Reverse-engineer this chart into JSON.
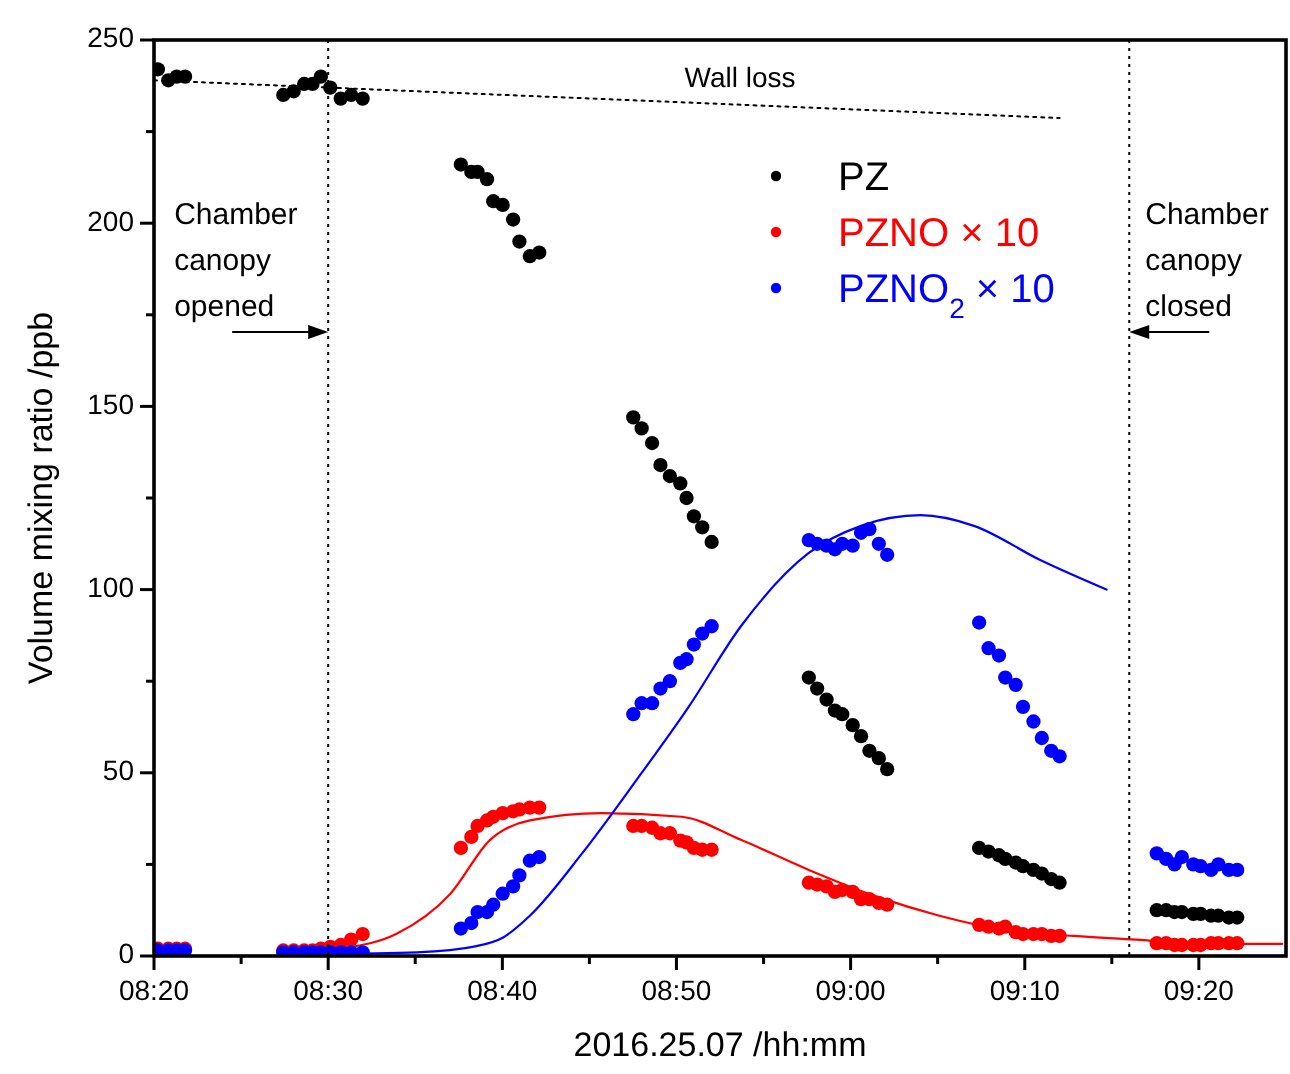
{
  "chart_data": {
    "type": "scatter",
    "xlabel": "2016.25.07 /hh:mm",
    "ylabel": "Volume mixing ratio /ppb",
    "xlim": [
      8.3333,
      9.4167
    ],
    "xticks": [
      {
        "value": 8.3333,
        "label": "08:20"
      },
      {
        "value": 8.4167,
        "label": null
      },
      {
        "value": 8.5,
        "label": "08:30"
      },
      {
        "value": 8.5833,
        "label": null
      },
      {
        "value": 8.6667,
        "label": "08:40"
      },
      {
        "value": 8.75,
        "label": null
      },
      {
        "value": 8.8333,
        "label": "08:50"
      },
      {
        "value": 8.9167,
        "label": null
      },
      {
        "value": 9.0,
        "label": "09:00"
      },
      {
        "value": 9.0833,
        "label": null
      },
      {
        "value": 9.1667,
        "label": "09:10"
      },
      {
        "value": 9.25,
        "label": null
      },
      {
        "value": 9.3333,
        "label": "09:20"
      }
    ],
    "ylim": [
      0,
      250
    ],
    "yticks": [
      0,
      {
        "value": 25,
        "label": null
      },
      50,
      {
        "value": 75,
        "label": null
      },
      100,
      {
        "value": 125,
        "label": null
      },
      150,
      {
        "value": 175,
        "label": null
      },
      200,
      {
        "value": 225,
        "label": null
      },
      250
    ],
    "x": [
      8.337,
      8.347,
      8.355,
      8.363,
      8.457,
      8.467,
      8.477,
      8.485,
      8.493,
      8.502,
      8.512,
      8.522,
      8.533,
      8.627,
      8.637,
      8.643,
      8.652,
      8.658,
      8.667,
      8.677,
      8.683,
      8.693,
      8.702,
      8.792,
      8.8,
      8.81,
      8.818,
      8.827,
      8.837,
      8.843,
      8.85,
      8.858,
      8.867,
      8.96,
      8.968,
      8.977,
      8.985,
      8.992,
      9.002,
      9.01,
      9.018,
      9.027,
      9.035,
      9.123,
      9.132,
      9.142,
      9.148,
      9.158,
      9.165,
      9.175,
      9.183,
      9.192,
      9.2,
      9.293,
      9.302,
      9.31,
      9.317,
      9.328,
      9.335,
      9.345,
      9.352,
      9.362,
      9.37
    ],
    "series": [
      {
        "name": "PZ",
        "color": "#000000",
        "values": [
          242,
          239,
          240,
          240,
          235,
          236,
          238,
          238,
          240,
          237,
          234,
          235,
          234,
          216,
          214,
          214,
          212,
          206,
          205,
          201,
          195,
          191,
          192,
          147,
          144,
          140,
          134,
          131,
          129,
          125,
          120,
          117,
          113,
          76,
          73,
          70,
          67,
          66,
          63,
          60,
          56,
          54,
          51,
          29.5,
          28.5,
          27.5,
          26.5,
          25.5,
          24.5,
          23.5,
          22.5,
          21,
          20,
          12.5,
          12.5,
          12,
          12,
          11.5,
          11.5,
          11,
          11,
          10.5,
          10.5
        ]
      },
      {
        "name": "PZNO × 10",
        "color": "#ff0000",
        "values": [
          2,
          2,
          2,
          2,
          1.5,
          1.5,
          1.5,
          1.5,
          2,
          2.5,
          3,
          4.5,
          6,
          29.5,
          32.5,
          35.5,
          37,
          38,
          39,
          39.5,
          40,
          40.5,
          40.5,
          35.5,
          35.5,
          35,
          33.5,
          33.5,
          31.5,
          31,
          29.5,
          29,
          29,
          20,
          19.5,
          19,
          17.5,
          18,
          17.5,
          15.5,
          15.5,
          14.5,
          14,
          8.5,
          8,
          7.5,
          8,
          6.5,
          6,
          6,
          6,
          5.5,
          5.5,
          3.5,
          3.5,
          3,
          3,
          3,
          3,
          3.5,
          3.5,
          3.5,
          3.5
        ]
      },
      {
        "name": "PZNO$_{2}$ × 10",
        "color": "#0000ff",
        "values": [
          1.5,
          1.5,
          1.5,
          1.5,
          1,
          1,
          1,
          1,
          1,
          1,
          1,
          1,
          1,
          7.5,
          9,
          12,
          12,
          14,
          17,
          19,
          22,
          26,
          27,
          66,
          69,
          69,
          73,
          75,
          80,
          81,
          85,
          88,
          90,
          113.5,
          112.5,
          112,
          111,
          112.5,
          112,
          115.5,
          116.5,
          112.5,
          109.5,
          91,
          84,
          82,
          76,
          74,
          68,
          64,
          59.5,
          56,
          54.5,
          28,
          26.5,
          25,
          27,
          25,
          24.5,
          23.5,
          25,
          23.5,
          23.5
        ]
      },
      {
        "type": "line",
        "marker": "none",
        "color": "#ff0000",
        "line_style": "solid",
        "x": [
          8.49,
          8.503,
          8.565,
          8.617,
          8.655,
          8.693,
          8.762,
          8.838,
          8.895,
          8.96,
          9.023,
          9.085,
          9.15,
          9.213,
          9.277,
          9.342,
          9.413
        ],
        "values": [
          1,
          1.6,
          6,
          17,
          31.7,
          37,
          39,
          38,
          31.7,
          23.5,
          16.4,
          11,
          7,
          5.5,
          4.4,
          3.3,
          3.3
        ]
      },
      {
        "type": "line",
        "marker": "none",
        "color": "#0000ff",
        "line_style": "solid",
        "x": [
          8.49,
          8.585,
          8.642,
          8.667,
          8.693,
          8.743,
          8.795,
          8.845,
          8.895,
          8.96,
          9.01,
          9.067,
          9.118,
          9.182,
          9.245
        ],
        "values": [
          0.5,
          1,
          2.7,
          5,
          11,
          28,
          48,
          68,
          90,
          110,
          117.4,
          120.3,
          117.4,
          108,
          100
        ]
      },
      {
        "type": "line",
        "marker": "none",
        "color": "#000000",
        "line_style": "dotted",
        "x": [
          8.3333,
          9.2
        ],
        "values": [
          239,
          228.7
        ]
      }
    ],
    "marker": "circle",
    "legend": "top right",
    "ref_lines": [
      {
        "axis": "x",
        "value": 8.5,
        "label": "Chamber canopy opened",
        "line_style": "dotted",
        "color": "#000000"
      },
      {
        "axis": "x",
        "value": 9.2667,
        "label": "Chamber canopy closed",
        "line_style": "dotted",
        "color": "#000000"
      }
    ],
    "annotations": [
      "Wall loss"
    ]
  }
}
